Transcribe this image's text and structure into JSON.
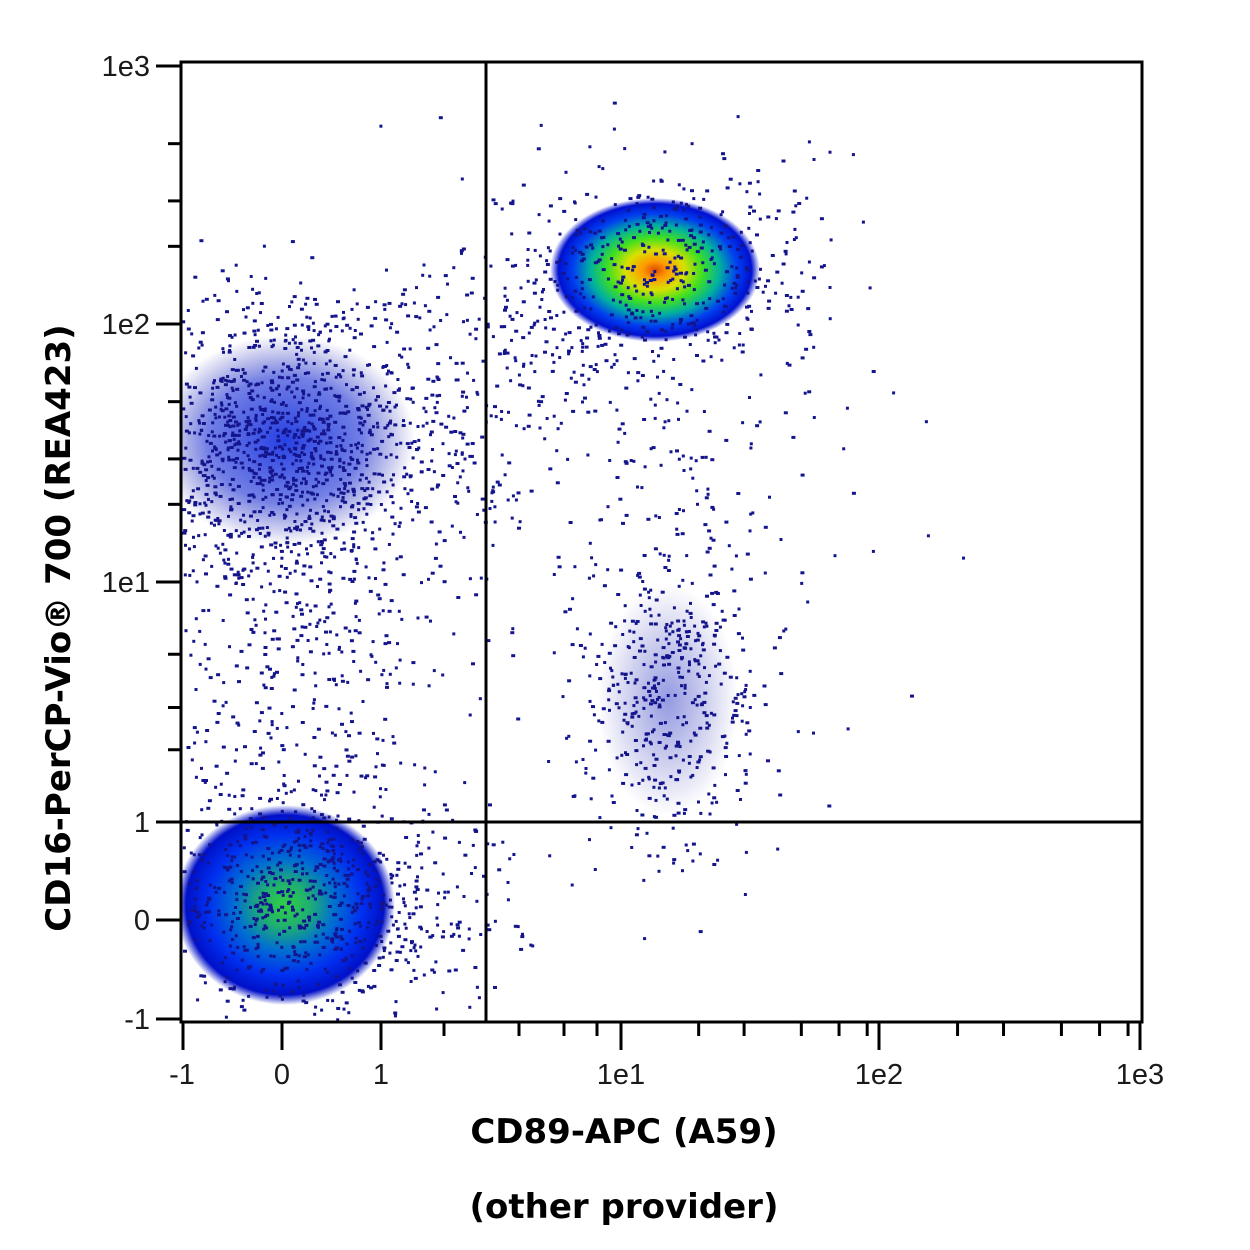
{
  "chart_data": {
    "type": "scatter",
    "subtype": "flow-cytometry-density-dotplot",
    "title": "",
    "xlabel": "CD89-APC (A59)",
    "xlabel_line2": "(other provider)",
    "ylabel": "CD16-PerCP-Vio® 700 (REA423)",
    "x_scale": "biexponential",
    "y_scale": "biexponential",
    "xlim": [
      -1,
      1000
    ],
    "ylim": [
      -1,
      1000
    ],
    "x_ticks": [
      "-1",
      "0",
      "1",
      "1e1",
      "1e2",
      "1e3"
    ],
    "y_ticks": [
      "1e3",
      "1e2",
      "1e1",
      "1",
      "0",
      "-1"
    ],
    "grid": false,
    "legend": null,
    "quadrant_gates": {
      "x": 3.0,
      "y": 1.0
    },
    "colormap": [
      "#1a1a8c",
      "#0000e0",
      "#0060ff",
      "#00c080",
      "#40e000",
      "#c0e000",
      "#ff9000",
      "#e04000"
    ],
    "populations": [
      {
        "name": "CD89+ CD16 high (neutrophils)",
        "quadrant": "upper-right",
        "center_x": 13,
        "center_y": 170,
        "peak_density": "high",
        "peak_color": "#e05000"
      },
      {
        "name": "CD89- CD16 intermediate",
        "quadrant": "upper-left",
        "center_x": 0.1,
        "center_y": 35,
        "peak_density": "low",
        "peak_color": "#0000e0"
      },
      {
        "name": "CD89- CD16- (double negative)",
        "quadrant": "lower-left",
        "center_x": 0.05,
        "center_y": 0.1,
        "peak_density": "medium",
        "peak_color": "#40d040"
      },
      {
        "name": "CD89+ CD16 low",
        "quadrant": "upper-right",
        "center_x": 14,
        "center_y": 3,
        "peak_density": "low",
        "peak_color": "#1010c0"
      }
    ]
  },
  "axes": {
    "x": {
      "title": "CD89-APC (A59)",
      "subtitle": "(other provider)",
      "ticks": [
        "-1",
        "0",
        "1",
        "1e1",
        "1e2",
        "1e3"
      ]
    },
    "y": {
      "title": "CD16-PerCP-Vio® 700 (REA423)",
      "ticks": [
        "1e3",
        "1e2",
        "1e1",
        "1",
        "0",
        "-1"
      ]
    }
  }
}
